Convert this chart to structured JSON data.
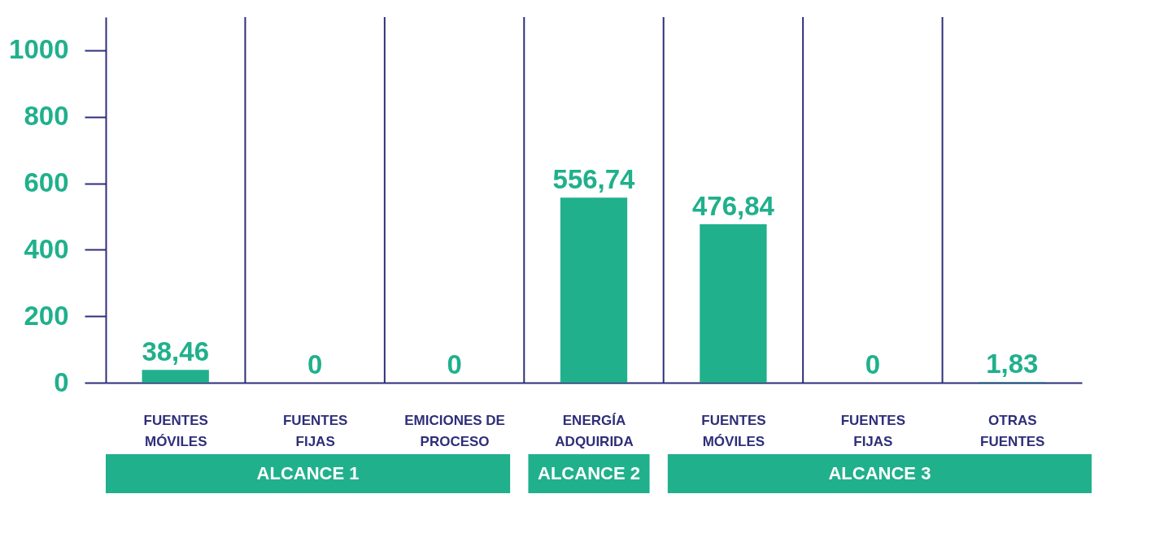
{
  "chart_data": {
    "type": "bar",
    "categories": [
      "FUENTES MÓVILES",
      "FUENTES FIJAS",
      "EMICIONES DE PROCESO",
      "ENERGÍA ADQUIRIDA",
      "FUENTES MÓVILES",
      "FUENTES FIJAS",
      "OTRAS FUENTES"
    ],
    "values": [
      38.46,
      0,
      0,
      556.74,
      476.84,
      0,
      1.83
    ],
    "value_labels": [
      "38,46",
      "0",
      "0",
      "556,74",
      "476,84",
      "0",
      "1,83"
    ],
    "color": "#20b08c",
    "ylim": [
      0,
      1100
    ],
    "yticks": [
      0,
      200,
      400,
      600,
      800,
      1000
    ],
    "grid": "x",
    "annotations": [
      "ALCANCE 1",
      "ALCANCE 2",
      "ALCANCE 3"
    ]
  }
}
